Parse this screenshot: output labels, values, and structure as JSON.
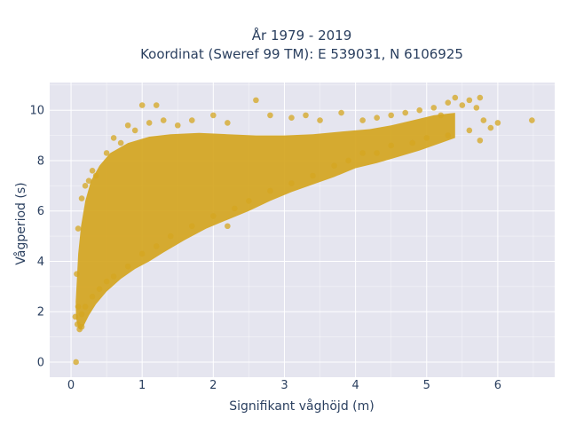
{
  "chart_data": {
    "type": "scatter",
    "title_line1": "År 1979 - 2019",
    "title_line2": "Koordinat (Sweref 99 TM): E 539031, N 6106925",
    "xlabel": "Signifikant våghöjd (m)",
    "ylabel": "Vågperiod (s)",
    "xlim": [
      -0.3,
      6.8
    ],
    "ylim": [
      -0.6,
      11.1
    ],
    "x_ticks": [
      0,
      1,
      2,
      3,
      4,
      5,
      6
    ],
    "y_ticks": [
      0,
      2,
      4,
      6,
      8,
      10
    ],
    "grid": true,
    "marker_color": "#d4a520",
    "plot_bg": "#e5e5ef",
    "grid_color": "#ffffff",
    "series": [
      {
        "points": [
          [
            0.07,
            0.0
          ],
          [
            0.06,
            1.8
          ],
          [
            0.09,
            1.5
          ],
          [
            0.12,
            1.3
          ],
          [
            0.15,
            1.4
          ],
          [
            0.1,
            2.2
          ],
          [
            0.08,
            3.5
          ],
          [
            0.1,
            5.3
          ],
          [
            0.15,
            6.5
          ],
          [
            0.2,
            7.0
          ],
          [
            0.3,
            7.6
          ],
          [
            0.25,
            7.2
          ],
          [
            0.35,
            7.4
          ],
          [
            0.5,
            8.3
          ],
          [
            0.6,
            8.9
          ],
          [
            0.7,
            8.7
          ],
          [
            0.8,
            9.4
          ],
          [
            0.9,
            9.2
          ],
          [
            1.0,
            10.2
          ],
          [
            1.1,
            9.5
          ],
          [
            1.2,
            10.2
          ],
          [
            1.3,
            9.6
          ],
          [
            1.5,
            9.4
          ],
          [
            1.7,
            9.6
          ],
          [
            2.0,
            9.8
          ],
          [
            2.2,
            9.5
          ],
          [
            2.6,
            10.4
          ],
          [
            2.8,
            9.8
          ],
          [
            3.1,
            9.7
          ],
          [
            3.3,
            9.8
          ],
          [
            3.5,
            9.6
          ],
          [
            3.8,
            9.9
          ],
          [
            4.1,
            9.6
          ],
          [
            4.3,
            9.7
          ],
          [
            4.5,
            9.8
          ],
          [
            4.7,
            9.9
          ],
          [
            4.9,
            10.0
          ],
          [
            5.1,
            10.1
          ],
          [
            5.2,
            9.8
          ],
          [
            5.3,
            10.3
          ],
          [
            5.4,
            10.5
          ],
          [
            5.5,
            10.2
          ],
          [
            5.6,
            10.4
          ],
          [
            5.7,
            10.1
          ],
          [
            5.75,
            10.5
          ],
          [
            5.8,
            9.6
          ],
          [
            5.9,
            9.3
          ],
          [
            6.0,
            9.5
          ],
          [
            5.6,
            9.2
          ],
          [
            5.75,
            8.8
          ],
          [
            5.3,
            9.0
          ],
          [
            5.0,
            8.9
          ],
          [
            4.8,
            8.7
          ],
          [
            4.5,
            8.6
          ],
          [
            4.3,
            8.3
          ],
          [
            4.1,
            8.3
          ],
          [
            3.9,
            8.0
          ],
          [
            3.7,
            7.8
          ],
          [
            3.4,
            7.4
          ],
          [
            3.1,
            7.1
          ],
          [
            2.8,
            6.8
          ],
          [
            2.5,
            6.4
          ],
          [
            2.3,
            6.1
          ],
          [
            2.2,
            5.4
          ],
          [
            2.0,
            5.8
          ],
          [
            1.7,
            5.4
          ],
          [
            1.4,
            5.0
          ],
          [
            1.2,
            4.6
          ],
          [
            1.0,
            4.3
          ],
          [
            0.8,
            3.8
          ],
          [
            0.6,
            3.4
          ],
          [
            0.5,
            3.2
          ],
          [
            0.4,
            2.9
          ],
          [
            0.3,
            2.6
          ],
          [
            0.2,
            2.2
          ],
          [
            0.15,
            1.9
          ],
          [
            6.48,
            9.6
          ]
        ]
      }
    ]
  }
}
